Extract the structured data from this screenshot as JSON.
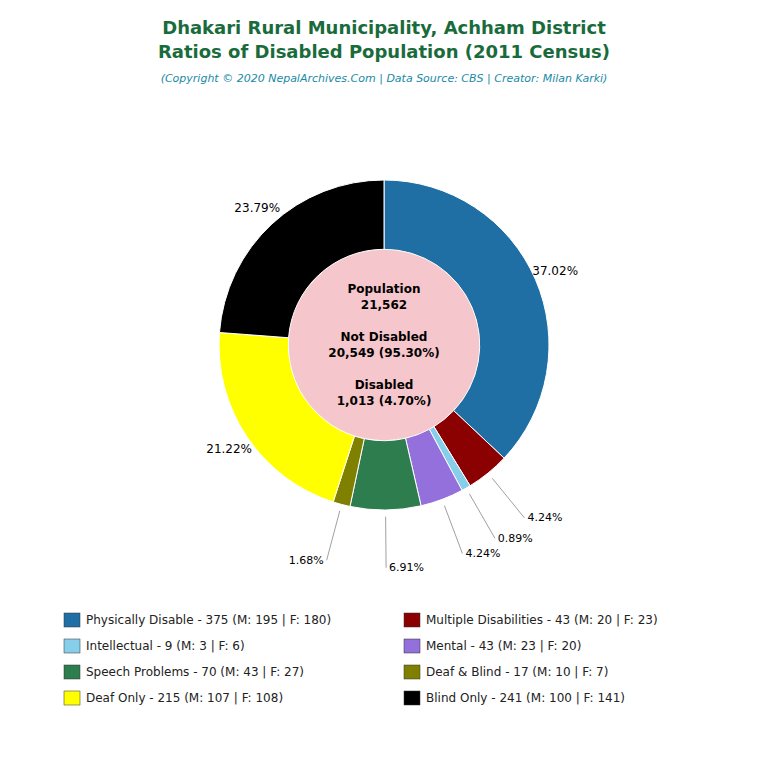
{
  "chart_data": {
    "type": "pie",
    "title": [
      "Dhakari Rural Municipality, Achham District",
      "Ratios of Disabled Population (2011 Census)"
    ],
    "subtitle": "(Copyright © 2020 NepalArchives.Com | Data Source: CBS | Creator: Milan Karki)",
    "categories": [
      "Physically Disable - 375 (M: 195 | F: 180)",
      "Multiple Disabilities - 43 (M: 20 | F: 23)",
      "Intellectual - 9 (M: 3 | F: 6)",
      "Mental - 43 (M: 23 | F: 20)",
      "Speech Problems - 70 (M: 43 | F: 27)",
      "Deaf & Blind - 17 (M: 10 | F: 7)",
      "Deaf Only - 215 (M: 107 | F: 108)",
      "Blind Only - 241 (M: 100 | F: 141)"
    ],
    "values": [
      37.02,
      4.24,
      0.89,
      4.24,
      6.91,
      1.68,
      21.22,
      23.79
    ],
    "value_labels": [
      "37.02%",
      "4.24%",
      "0.89%",
      "4.24%",
      "6.91%",
      "1.68%",
      "21.22%",
      "23.79%"
    ],
    "colors": [
      "#1f6fa5",
      "#8b0000",
      "#87ceeb",
      "#9370db",
      "#2e7d4f",
      "#808000",
      "#ffff00",
      "#000000"
    ],
    "annotations": [
      "Population",
      "21,562",
      "Not Disabled",
      "20,549 (95.30%)",
      "Disabled",
      "1,013 (4.70%)"
    ],
    "data_labels": true,
    "legend": "bottom"
  }
}
